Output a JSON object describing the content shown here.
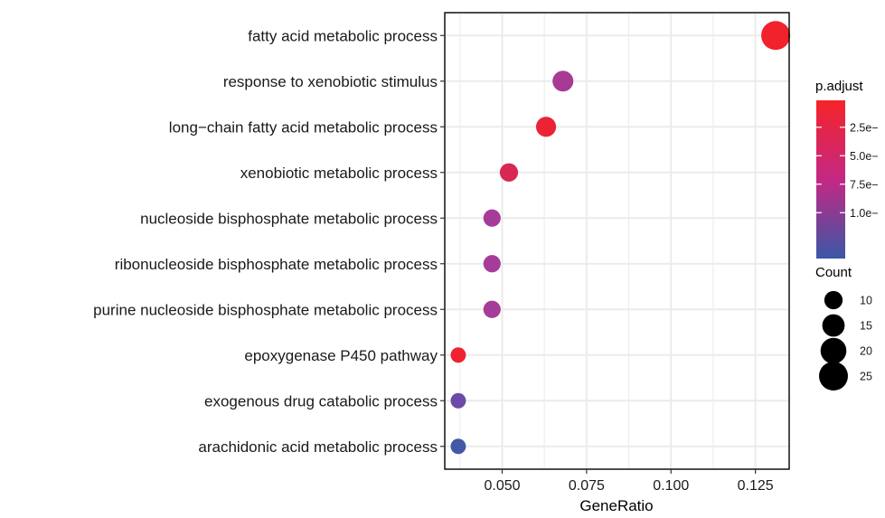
{
  "chart_data": {
    "type": "scatter",
    "categories": [
      "fatty acid metabolic process",
      "response to xenobiotic stimulus",
      "long−chain fatty acid metabolic process",
      "xenobiotic metabolic process",
      "nucleoside bisphosphate metabolic process",
      "ribonucleoside bisphosphate metabolic process",
      "purine nucleoside bisphosphate metabolic process",
      "epoxygenase P450 pathway",
      "exogenous drug catabolic process",
      "arachidonic acid metabolic process"
    ],
    "points": [
      {
        "category": "fatty acid metabolic process",
        "gene_ratio": 0.131,
        "count": 25,
        "color": "#f0222c"
      },
      {
        "category": "response to xenobiotic stimulus",
        "gene_ratio": 0.068,
        "count": 13,
        "color": "#a83a96"
      },
      {
        "category": "long−chain fatty acid metabolic process",
        "gene_ratio": 0.063,
        "count": 12,
        "color": "#ea2434"
      },
      {
        "category": "xenobiotic metabolic process",
        "gene_ratio": 0.052,
        "count": 10,
        "color": "#d72752"
      },
      {
        "category": "nucleoside bisphosphate metabolic process",
        "gene_ratio": 0.047,
        "count": 9,
        "color": "#a63c9a"
      },
      {
        "category": "ribonucleoside bisphosphate metabolic process",
        "gene_ratio": 0.047,
        "count": 9,
        "color": "#a63c9a"
      },
      {
        "category": "purine nucleoside bisphosphate metabolic process",
        "gene_ratio": 0.047,
        "count": 9,
        "color": "#a63c9a"
      },
      {
        "category": "epoxygenase P450 pathway",
        "gene_ratio": 0.037,
        "count": 7,
        "color": "#ee2230"
      },
      {
        "category": "exogenous drug catabolic process",
        "gene_ratio": 0.037,
        "count": 7,
        "color": "#6c4aa8"
      },
      {
        "category": "arachidonic acid metabolic process",
        "gene_ratio": 0.037,
        "count": 7,
        "color": "#4358a6"
      }
    ],
    "x_ticks": [
      0.05,
      0.075,
      0.1,
      0.125
    ],
    "x_tick_labels": [
      "0.050",
      "0.075",
      "0.100",
      "0.125"
    ],
    "xlim": [
      0.033,
      0.135
    ],
    "xlabel": "GeneRatio",
    "ylabel": "",
    "grid": true,
    "legend_placement": "right",
    "color_legend": {
      "title": "p.adjust",
      "labels": [
        "2.5e−",
        "5.0e−",
        "7.5e−",
        "1.0e−"
      ],
      "gradient_top": "#f62329",
      "gradient_mid": "#c42884",
      "gradient_bottom": "#3a57a6"
    },
    "size_legend": {
      "title": "Count",
      "counts": [
        10,
        15,
        20,
        25
      ],
      "labels": [
        "10",
        "15",
        "20",
        "25"
      ]
    }
  }
}
